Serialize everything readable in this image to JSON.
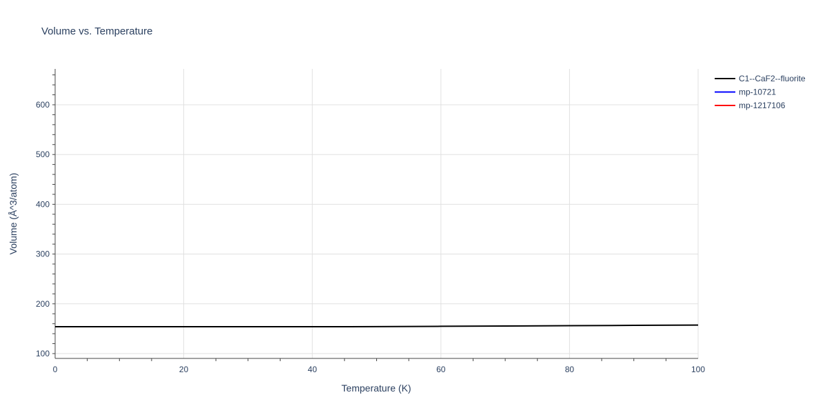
{
  "chart_data": {
    "type": "line",
    "title": "Volume vs. Temperature",
    "xlabel": "Temperature (K)",
    "ylabel": "Volume (Å^3/atom)",
    "xlim": [
      0,
      100
    ],
    "ylim": [
      90.3,
      672
    ],
    "xticks": [
      0,
      20,
      40,
      60,
      80,
      100
    ],
    "yticks": [
      100,
      200,
      300,
      400,
      500,
      600
    ],
    "grid": true,
    "legend_position": "right",
    "series": [
      {
        "name": "C1--CaF2--fluorite",
        "color": "#000000",
        "x": [
          0,
          10,
          20,
          30,
          40,
          50,
          60,
          70,
          80,
          90,
          100
        ],
        "y": [
          154,
          154,
          154,
          154,
          154,
          154.1,
          154.8,
          155.4,
          156.1,
          156.7,
          157.3
        ]
      },
      {
        "name": "mp-10721",
        "color": "#0000ff",
        "x": [],
        "y": []
      },
      {
        "name": "mp-1217106",
        "color": "#ff0000",
        "x": [],
        "y": []
      }
    ]
  }
}
